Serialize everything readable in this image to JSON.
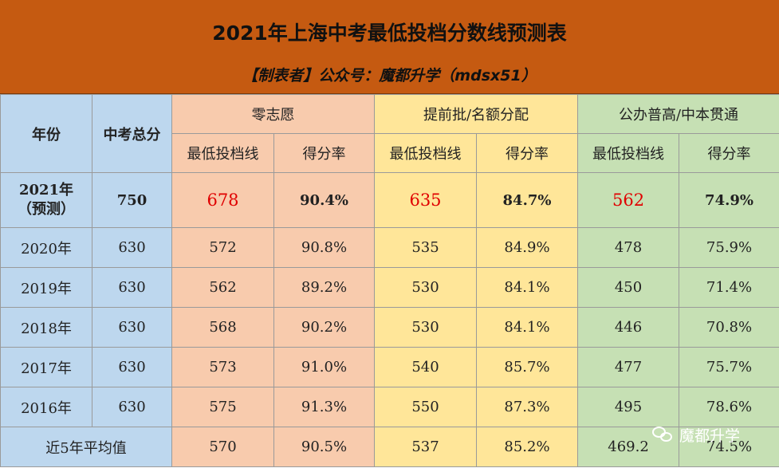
{
  "header": {
    "title": "2021年上海中考最低投档分数线预测表",
    "subtitle": "【制表者】公众号：魔都升学（mdsx51）"
  },
  "table": {
    "col_year": "年份",
    "col_total": "中考总分",
    "groups": [
      "零志愿",
      "提前批/名额分配",
      "公办普高/中本贯通"
    ],
    "sub_min": "最低投档线",
    "sub_rate": "得分率",
    "prediction": {
      "year_line1": "2021年",
      "year_line2": "（预测）",
      "total": "750",
      "values": [
        "678",
        "90.4%",
        "635",
        "84.7%",
        "562",
        "74.9%"
      ]
    },
    "rows": [
      {
        "year": "2020年",
        "total": "630",
        "values": [
          "572",
          "90.8%",
          "535",
          "84.9%",
          "478",
          "75.9%"
        ]
      },
      {
        "year": "2019年",
        "total": "630",
        "values": [
          "562",
          "89.2%",
          "530",
          "84.1%",
          "450",
          "71.4%"
        ]
      },
      {
        "year": "2018年",
        "total": "630",
        "values": [
          "568",
          "90.2%",
          "530",
          "84.1%",
          "446",
          "70.8%"
        ]
      },
      {
        "year": "2017年",
        "total": "630",
        "values": [
          "573",
          "91.0%",
          "540",
          "85.7%",
          "477",
          "75.7%"
        ]
      },
      {
        "year": "2016年",
        "total": "630",
        "values": [
          "575",
          "91.3%",
          "550",
          "87.3%",
          "495",
          "78.6%"
        ]
      }
    ],
    "average": {
      "label": "近5年平均值",
      "values": [
        "570",
        "90.5%",
        "537",
        "85.2%",
        "469.2",
        "74.5%"
      ]
    }
  },
  "watermark": {
    "icon": "wechat-icon",
    "text": "魔都升学"
  },
  "colors": {
    "header_bg": "#C55A11",
    "blue": "#BDD7EE",
    "orange": "#F8CBAD",
    "yellow": "#FFE699",
    "green": "#C6E0B4",
    "prediction_red": "#E00000"
  }
}
